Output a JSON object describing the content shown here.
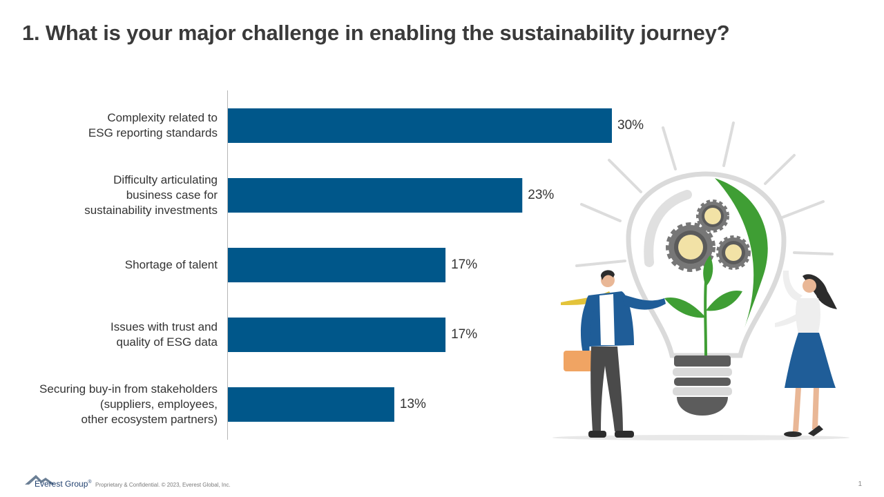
{
  "title": "1. What is your major challenge in enabling the sustainability journey?",
  "chart_data": {
    "type": "bar",
    "orientation": "horizontal",
    "categories": [
      "Complexity related to\nESG reporting standards",
      "Difficulty articulating\nbusiness case for\nsustainability investments",
      "Shortage of talent",
      "Issues with trust and\nquality of ESG data",
      "Securing buy-in from stakeholders\n(suppliers, employees,\nother ecosystem partners)"
    ],
    "values": [
      30,
      23,
      17,
      17,
      13
    ],
    "value_labels": [
      "30%",
      "23%",
      "17%",
      "17%",
      "13%"
    ],
    "bar_color": "#00578a",
    "grid": false
  },
  "footer": {
    "brand": "Everest Group",
    "brand_mark": "®",
    "note": "Proprietary & Confidential. © 2023, Everest Global, Inc.",
    "page_number": "1"
  },
  "illustration": {
    "icons": [
      "lightbulb-icon",
      "gear-icon",
      "plant-icon",
      "businessman-figure",
      "businesswoman-figure",
      "briefcase-icon"
    ]
  }
}
